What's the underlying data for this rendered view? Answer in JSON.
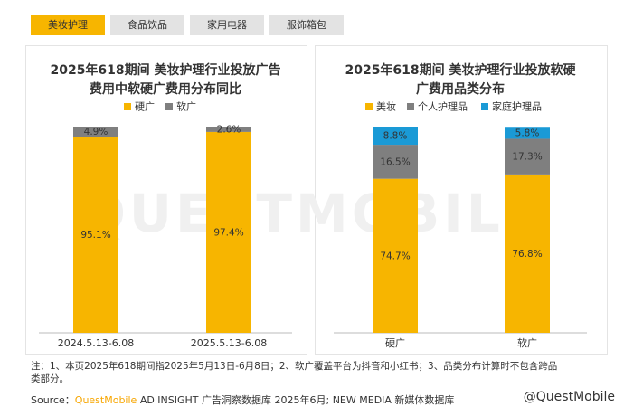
{
  "tabs": [
    "美妆护理",
    "食品饮品",
    "家用电器",
    "服饰箱包"
  ],
  "watermark": "QUESTMOBILE",
  "chart_data": [
    {
      "type": "stacked_bar",
      "title": [
        "2025年618期间 美妆护理行业投放广告",
        "费用中软硬广费用分布同比"
      ],
      "categories": [
        "2024.5.13-6.08",
        "2025.5.13-6.08"
      ],
      "series": [
        {
          "name": "硬广",
          "color": "#f7b500",
          "values": [
            95.1,
            97.4
          ],
          "value_labels": [
            "95.1%",
            "97.4%"
          ]
        },
        {
          "name": "软广",
          "color": "#7f7f7f",
          "values": [
            4.9,
            2.6
          ],
          "value_labels": [
            "4.9%",
            "2.6%"
          ]
        }
      ],
      "ylim": [
        0,
        100
      ]
    },
    {
      "type": "stacked_bar",
      "title": [
        "2025年618期间 美妆护理行业投放软硬",
        "广费用品类分布"
      ],
      "categories": [
        "硬广",
        "软广"
      ],
      "series": [
        {
          "name": "美妆",
          "color": "#f7b500",
          "values": [
            74.7,
            76.8
          ],
          "value_labels": [
            "74.7%",
            "76.8%"
          ]
        },
        {
          "name": "个人护理品",
          "color": "#7f7f7f",
          "values": [
            16.5,
            17.3
          ],
          "value_labels": [
            "16.5%",
            "17.3%"
          ]
        },
        {
          "name": "家庭护理品",
          "color": "#1a9ad6",
          "values": [
            8.8,
            5.8
          ],
          "value_labels": [
            "8.8%",
            "5.8%"
          ]
        }
      ],
      "ylim": [
        0,
        100
      ]
    }
  ],
  "note": [
    "注：1、本页2025年618期间指2025年5月13日-6月8日；2、软广覆盖平台为抖音和小红书；3、品类分布计算时不包含跨品",
    "类部分。"
  ],
  "source": {
    "label": "Source：",
    "brand": "QuestMobile",
    "text": "AD INSIGHT 广告洞察数据库 2025年6月; NEW MEDIA 新媒体数据库"
  },
  "credit": "@QuestMobile"
}
